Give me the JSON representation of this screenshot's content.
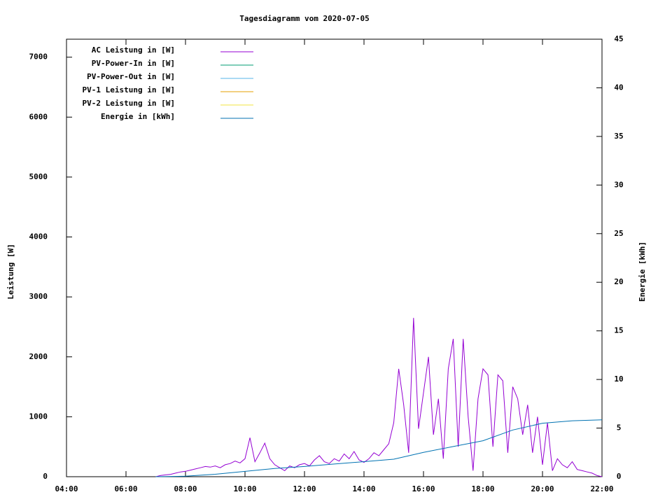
{
  "chart_data": {
    "type": "line",
    "title": "Tagesdiagramm vom 2020-07-05",
    "ylabel": "Leistung [W]",
    "y2label": "Energie [kWh]",
    "xlim": [
      "04:00",
      "22:00"
    ],
    "xticks": [
      "04:00",
      "06:00",
      "08:00",
      "10:00",
      "12:00",
      "14:00",
      "16:00",
      "18:00",
      "20:00",
      "22:00"
    ],
    "ylim": [
      0,
      7300
    ],
    "yticks": [
      0,
      1000,
      2000,
      3000,
      4000,
      5000,
      6000,
      7000
    ],
    "y2lim": [
      0,
      45
    ],
    "y2ticks": [
      0,
      5,
      10,
      15,
      20,
      25,
      30,
      35,
      40,
      45
    ],
    "legend": "upper left",
    "series": [
      {
        "name": "AC Leistung in [W]",
        "color": "#9400d3",
        "x": [
          "07:00",
          "07:10",
          "07:20",
          "07:30",
          "07:40",
          "07:50",
          "08:00",
          "08:10",
          "08:20",
          "08:30",
          "08:40",
          "08:50",
          "09:00",
          "09:10",
          "09:20",
          "09:30",
          "09:40",
          "09:50",
          "10:00",
          "10:10",
          "10:20",
          "10:30",
          "10:40",
          "10:50",
          "11:00",
          "11:10",
          "11:20",
          "11:30",
          "11:40",
          "11:50",
          "12:00",
          "12:10",
          "12:20",
          "12:30",
          "12:40",
          "12:50",
          "13:00",
          "13:10",
          "13:20",
          "13:30",
          "13:40",
          "13:50",
          "14:00",
          "14:10",
          "14:20",
          "14:30",
          "14:40",
          "14:50",
          "15:00",
          "15:10",
          "15:20",
          "15:30",
          "15:40",
          "15:50",
          "16:00",
          "16:10",
          "16:20",
          "16:30",
          "16:40",
          "16:50",
          "17:00",
          "17:10",
          "17:20",
          "17:30",
          "17:40",
          "17:50",
          "18:00",
          "18:10",
          "18:20",
          "18:30",
          "18:40",
          "18:50",
          "19:00",
          "19:10",
          "19:20",
          "19:30",
          "19:40",
          "19:50",
          "20:00",
          "20:10",
          "20:20",
          "20:30",
          "20:40",
          "20:50",
          "21:00",
          "21:10",
          "21:20",
          "21:30",
          "21:40",
          "21:50",
          "22:00"
        ],
        "values": [
          0,
          20,
          30,
          40,
          60,
          80,
          90,
          110,
          130,
          150,
          170,
          160,
          180,
          150,
          200,
          220,
          260,
          230,
          300,
          650,
          250,
          400,
          560,
          300,
          200,
          150,
          100,
          180,
          150,
          200,
          220,
          180,
          280,
          350,
          250,
          220,
          300,
          260,
          380,
          300,
          420,
          280,
          240,
          300,
          400,
          350,
          450,
          550,
          900,
          1800,
          1200,
          400,
          2650,
          800,
          1400,
          2000,
          700,
          1300,
          300,
          1800,
          2300,
          500,
          2300,
          1000,
          100,
          1300,
          1800,
          1700,
          500,
          1700,
          1600,
          400,
          1500,
          1300,
          700,
          1200,
          400,
          1000,
          200,
          900,
          100,
          300,
          200,
          150,
          250,
          120,
          100,
          80,
          60,
          20,
          0
        ]
      },
      {
        "name": "PV-Power-In in [W]",
        "color": "#009e73"
      },
      {
        "name": "PV-Power-Out in [W]",
        "color": "#56b4e9"
      },
      {
        "name": "PV-1 Leistung in [W]",
        "color": "#e69f00"
      },
      {
        "name": "PV-2 Leistung in [W]",
        "color": "#f0e442"
      },
      {
        "name": "Energie in [kWh]",
        "color": "#0072b2",
        "axis": "y2",
        "x": [
          "07:00",
          "08:00",
          "09:00",
          "10:00",
          "11:00",
          "12:00",
          "13:00",
          "14:00",
          "15:00",
          "16:00",
          "17:00",
          "18:00",
          "19:00",
          "20:00",
          "21:00",
          "22:00"
        ],
        "values": [
          0,
          0.05,
          0.25,
          0.55,
          0.85,
          1.05,
          1.3,
          1.55,
          1.8,
          2.5,
          3.1,
          3.7,
          4.8,
          5.5,
          5.75,
          5.85
        ]
      }
    ]
  }
}
